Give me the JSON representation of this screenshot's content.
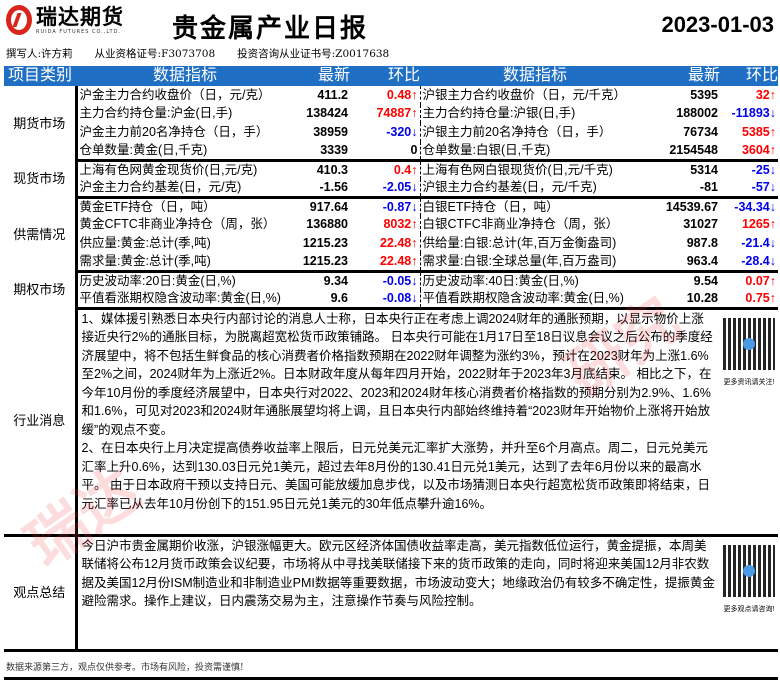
{
  "header": {
    "logo_cn": "瑞达期货",
    "logo_en": "RUIDA FUTURES CO.,LTD.",
    "title": "贵金属产业日报",
    "date": "2023-01-03"
  },
  "meta": {
    "author": "撰写人:许方莉",
    "qual": "从业资格证号:F3073708",
    "consult": "投资咨询从业证书号:Z0017638"
  },
  "columns": {
    "category": "项目类别",
    "indicator": "数据指标",
    "latest": "最新",
    "change": "环比"
  },
  "sections": [
    {
      "category": "期货市场",
      "rows": [
        {
          "l_name": "沪金主力合约收盘价（日，元/克）",
          "l_val": "411.2",
          "l_chg": "0.48↑",
          "l_dir": "up",
          "r_name": "沪银主力合约收盘价（日，元/千克）",
          "r_val": "5395",
          "r_chg": "32↑",
          "r_dir": "up"
        },
        {
          "l_name": "主力合约持仓量:沪金(日,手)",
          "l_val": "138424",
          "l_chg": "74887↑",
          "l_dir": "up",
          "r_name": "主力合约持仓量:沪银(日,手)",
          "r_val": "188002",
          "r_chg": "-11893↓",
          "r_dir": "dn"
        },
        {
          "l_name": "沪金主力前20名净持仓（日，手）",
          "l_val": "38959",
          "l_chg": "-320↓",
          "l_dir": "dn",
          "r_name": "沪银主力前20名净持仓（日，手）",
          "r_val": "76734",
          "r_chg": "5385↑",
          "r_dir": "up"
        },
        {
          "l_name": "仓单数量:黄金(日,千克)",
          "l_val": "3339",
          "l_chg": "0",
          "l_dir": "zero",
          "r_name": "仓单数量:白银(日,千克)",
          "r_val": "2154548",
          "r_chg": "3604↑",
          "r_dir": "up"
        }
      ]
    },
    {
      "category": "现货市场",
      "rows": [
        {
          "l_name": "上海有色网黄金现货价(日,元/克)",
          "l_val": "410.3",
          "l_chg": "0.4↑",
          "l_dir": "up",
          "r_name": "上海有色网白银现货价(日,元/千克)",
          "r_val": "5314",
          "r_chg": "-25↓",
          "r_dir": "dn"
        },
        {
          "l_name": "沪金主力合约基差(日，元/克)",
          "l_val": "-1.56",
          "l_chg": "-2.05↓",
          "l_dir": "dn",
          "r_name": "沪银主力合约基差(日，元/千克)",
          "r_val": "-81",
          "r_chg": "-57↓",
          "r_dir": "dn"
        }
      ]
    },
    {
      "category": "供需情况",
      "rows": [
        {
          "l_name": "黄金ETF持仓（日，吨）",
          "l_val": "917.64",
          "l_chg": "-0.87↓",
          "l_dir": "dn",
          "r_name": "白银ETF持仓（日，吨）",
          "r_val": "14539.67",
          "r_chg": "-34.34↓",
          "r_dir": "dn"
        },
        {
          "l_name": "黄金CFTC非商业净持仓（周，张）",
          "l_val": "136880",
          "l_chg": "8032↑",
          "l_dir": "up",
          "r_name": "白银CTFC非商业净持仓（周，张）",
          "r_val": "31027",
          "r_chg": "1265↑",
          "r_dir": "up"
        },
        {
          "l_name": "供应量:黄金:总计(季,吨)",
          "l_val": "1215.23",
          "l_chg": "22.48↑",
          "l_dir": "up",
          "r_name": "供给量:白银:总计(年,百万金衡盎司)",
          "r_val": "987.8",
          "r_chg": "-21.4↓",
          "r_dir": "dn"
        },
        {
          "l_name": "需求量:黄金:总计(季,吨)",
          "l_val": "1215.23",
          "l_chg": "22.48↑",
          "l_dir": "up",
          "r_name": "需求量:白银:全球总量(年,百万盎司)",
          "r_val": "963.4",
          "r_chg": "-28.4↓",
          "r_dir": "dn"
        }
      ]
    },
    {
      "category": "期权市场",
      "rows": [
        {
          "l_name": "历史波动率:20日:黄金(日,%)",
          "l_val": "9.34",
          "l_chg": "-0.05↓",
          "l_dir": "dn",
          "r_name": "历史波动率:40日:黄金(日,%)",
          "r_val": "9.54",
          "r_chg": "0.07↑",
          "r_dir": "up"
        },
        {
          "l_name": "平值看涨期权隐含波动率:黄金(日,%)",
          "l_val": "9.6",
          "l_chg": "-0.08↓",
          "l_dir": "dn",
          "r_name": "平值看跌期权隐含波动率:黄金(日,%)",
          "r_val": "10.28",
          "r_chg": "0.75↑",
          "r_dir": "up"
        }
      ]
    }
  ],
  "news": {
    "category": "行业消息",
    "p1": "1、媒体援引熟悉日本央行内部讨论的消息人士称，日本央行正在考虑上调2024财年的通胀预期，以显示物价上涨接近央行2%的通胀目标，为脱离超宽松货币政策铺路。 日本央行可能在1月17日至18日议息会议之后公布的季度经济展望中，将不包括生鲜食品的核心消费者价格指数预期在2022财年调整为涨约3%，预计在2023财年为上涨1.6%至2%之间，2024财年为上涨近2%。日本财政年度从每年四月开始，2022财年于2023年3月底结束。 相比之下，在今年10月份的季度经济展望中，日本央行对2022、2023和2024财年核心消费者价格指数的预期分别为2.9%、1.6%和1.6%，可见对2023和2024财年通胀展望均将上调，且日本央行内部始终维持着“2023财年开始物价上涨将开始放缓”的观点不变。",
    "p2": "2、在日本央行上月决定提高债券收益率上限后，日元兑美元汇率扩大涨势，并升至6个月高点。周二，日元兑美元汇率上升0.6%，达到130.03日元兑1美元，超过去年8月份的130.41日元兑1美元，达到了去年6月份以来的最高水平。 由于日本政府干预以支持日元、美国可能放缓加息步伐，以及市场猜测日本央行超宽松货币政策即将结束，日元汇率已从去年10月份创下的151.95日元兑1美元的30年低点攀升逾16%。",
    "qr_caption": "更多资讯请关注!"
  },
  "summary": {
    "category": "观点总结",
    "text": "今日沪市贵金属期价收涨，沪银涨幅更大。欧元区经济体国债收益率走高，美元指数低位运行，黄金提振，本周美联储将公布12月货币政策会议纪要，市场将从中寻找美联储接下来的货币政策的走向，同时将迎来美国12月非农数据及美国12月份ISM制造业和非制造业PMI数据等重要数据，市场波动变大；地缘政治仍有较多不确定性，提振黄金避险需求。操作上建议，日内震荡交易为主，注意操作节奏与风险控制。",
    "qr_caption": "更多观点请咨询!"
  },
  "footer": "数据来源第三方，观点仅供参考。市场有风险，投资需谨慎!",
  "colors": {
    "header_bg": "#1f6fc5",
    "up": "#ff0000",
    "down": "#0000ee",
    "brand": "#d9251c"
  }
}
